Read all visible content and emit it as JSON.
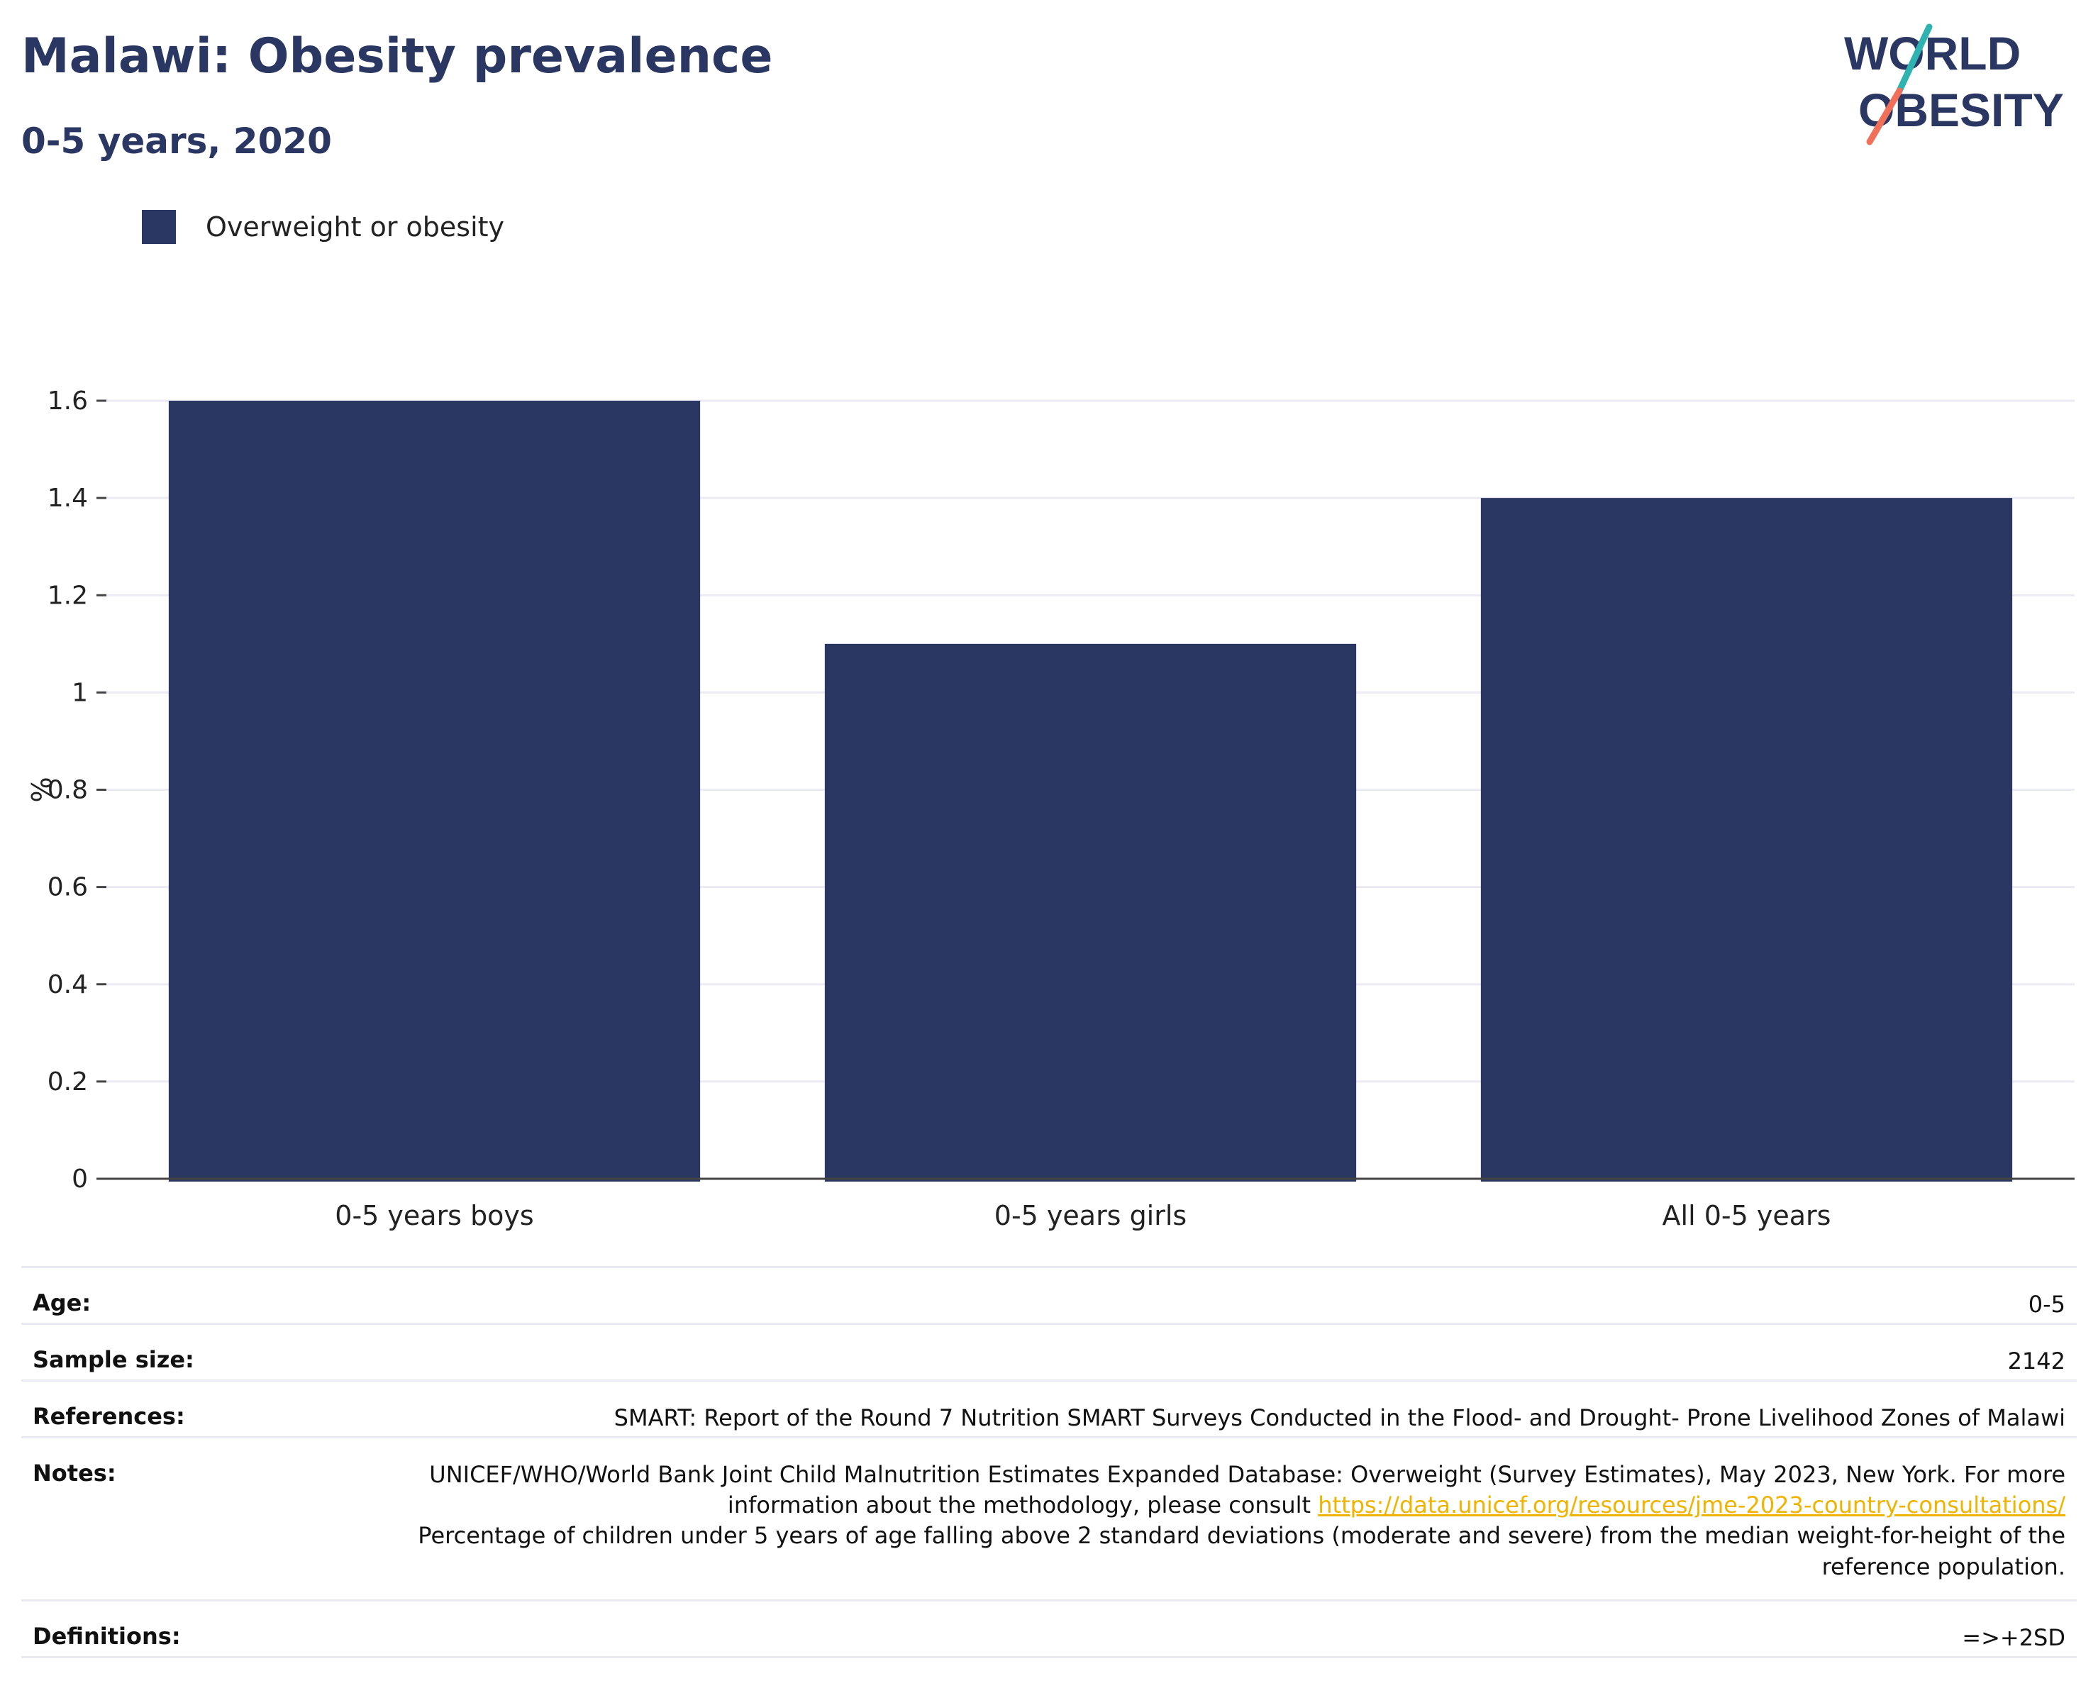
{
  "header": {
    "title": "Malawi: Obesity prevalence",
    "subtitle": "0-5 years, 2020"
  },
  "logo": {
    "line1": "WORLD",
    "line2": "OBESITY",
    "accent_teal": "#2fb3b0",
    "accent_coral": "#f0705a"
  },
  "legend": {
    "label": "Overweight or obesity",
    "color": "#2a3762"
  },
  "chart_data": {
    "type": "bar",
    "categories": [
      "0-5 years boys",
      "0-5 years girls",
      "All 0-5 years"
    ],
    "series": [
      {
        "name": "Overweight or obesity",
        "values": [
          1.6,
          1.1,
          1.4
        ],
        "color": "#2a3762"
      }
    ],
    "ylabel": "%",
    "ylim": [
      0,
      1.6
    ],
    "yticks": [
      0,
      0.2,
      0.4,
      0.6,
      0.8,
      1,
      1.2,
      1.4,
      1.6
    ],
    "ytick_labels": [
      "0",
      "0.2",
      "0.4",
      "0.6",
      "0.8",
      "1",
      "1.2",
      "1.4",
      "1.6"
    ],
    "grid": true,
    "legend_position": "top-left"
  },
  "info": {
    "age_label": "Age:",
    "age_value": "0-5",
    "sample_label": "Sample size:",
    "sample_value": "2142",
    "references_label": "References:",
    "references_value": "SMART: Report of the Round 7 Nutrition SMART Surveys Conducted in the Flood- and Drought- Prone Livelihood Zones of Malawi",
    "notes_label": "Notes:",
    "notes_text1": "UNICEF/WHO/World Bank Joint Child Malnutrition Estimates Expanded Database: Overweight (Survey Estimates), May 2023, New York. For more information about the methodology, please consult ",
    "notes_link": "https://data.unicef.org/resources/jme-2023-country-consultations/",
    "notes_text2": "Percentage of children under 5 years of age falling above 2 standard deviations (moderate and severe) from the median weight-for-height of the reference population.",
    "definitions_label": "Definitions:",
    "definitions_value": "=>+2SD"
  }
}
